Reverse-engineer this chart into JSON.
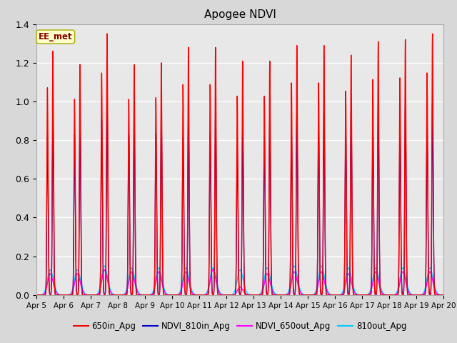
{
  "title": "Apogee NDVI",
  "annotation_text": "EE_met",
  "annotation_bg": "#ffffcc",
  "annotation_border": "#aaaa00",
  "annotation_text_color": "#880000",
  "ylim": [
    0.0,
    1.4
  ],
  "yticks": [
    0.0,
    0.2,
    0.4,
    0.6,
    0.8,
    1.0,
    1.2,
    1.4
  ],
  "xtick_labels": [
    "Apr 5",
    "Apr 6",
    "Apr 7",
    "Apr 8",
    "Apr 9",
    "Apr 10",
    "Apr 11",
    "Apr 12",
    "Apr 13",
    "Apr 14",
    "Apr 15",
    "Apr 16",
    "Apr 17",
    "Apr 18",
    "Apr 19",
    "Apr 20"
  ],
  "colors": {
    "650in_Apg": "#ff0000",
    "NDVI_810in_Apg": "#0000cc",
    "NDVI_650out_Apg": "#ff00ff",
    "810out_Apg": "#00ccff"
  },
  "legend_labels": [
    "650in_Apg",
    "NDVI_810in_Apg",
    "NDVI_650out_Apg",
    "810out_Apg"
  ],
  "outer_bg": "#d8d8d8",
  "plot_bg": "#e8e8e8",
  "grid_color": "#ffffff",
  "linewidth": 1.0,
  "red_peaks": [
    1.26,
    1.19,
    1.35,
    1.19,
    1.2,
    1.28,
    1.28,
    1.21,
    1.21,
    1.29,
    1.29,
    1.24,
    1.31,
    1.32,
    1.35
  ],
  "blue_peaks": [
    0.92,
    0.92,
    1.01,
    0.92,
    0.93,
    0.9,
    0.93,
    0.85,
    0.91,
    0.93,
    0.95,
    0.95,
    0.96,
    0.97,
    0.99
  ],
  "mag_peaks": [
    0.11,
    0.11,
    0.13,
    0.12,
    0.12,
    0.12,
    0.13,
    0.04,
    0.11,
    0.12,
    0.12,
    0.11,
    0.12,
    0.12,
    0.12
  ],
  "cyan_peaks": [
    0.13,
    0.13,
    0.15,
    0.14,
    0.14,
    0.14,
    0.14,
    0.13,
    0.14,
    0.15,
    0.15,
    0.14,
    0.14,
    0.14,
    0.14
  ]
}
